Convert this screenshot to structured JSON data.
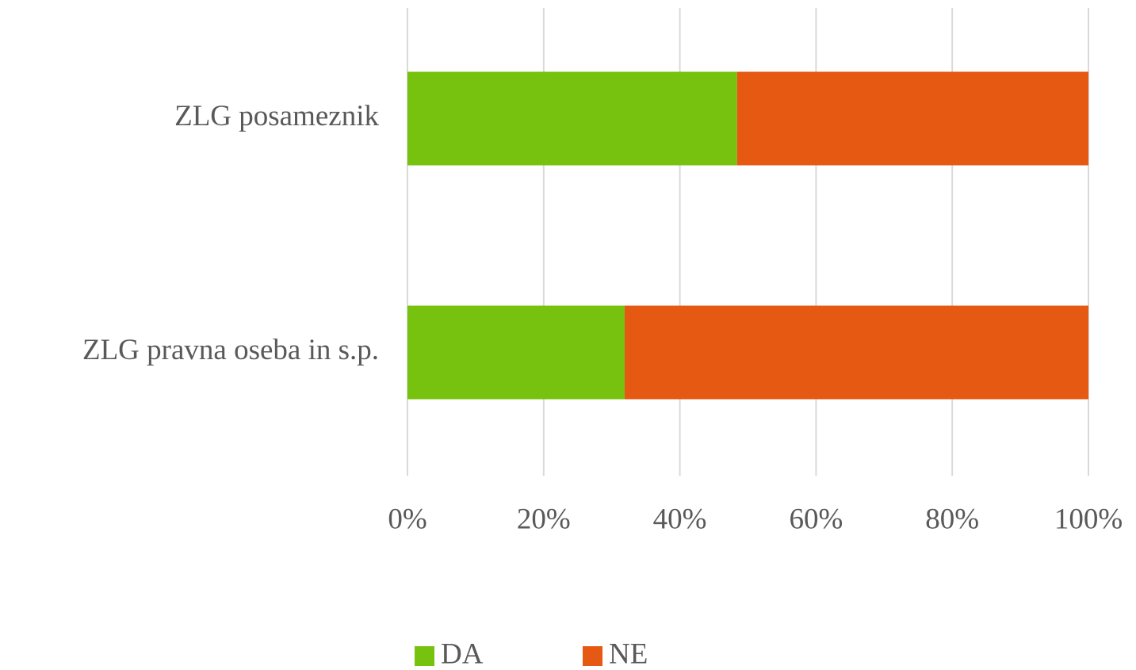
{
  "chart_data": {
    "type": "bar_stacked_horizontal",
    "categories": [
      "ZLG posameznik",
      "ZLG pravna oseba in s.p."
    ],
    "series": [
      {
        "name": "DA",
        "color": "#77c10f",
        "values": [
          48.4,
          31.9
        ]
      },
      {
        "name": "NE",
        "color": "#e55912",
        "values": [
          51.6,
          68.1
        ]
      }
    ],
    "xlim": [
      0,
      100
    ],
    "xticks": [
      {
        "value": 0,
        "label": "0%"
      },
      {
        "value": 20,
        "label": "20%"
      },
      {
        "value": 40,
        "label": "40%"
      },
      {
        "value": 60,
        "label": "60%"
      },
      {
        "value": 80,
        "label": "80%"
      },
      {
        "value": 100,
        "label": "100%"
      }
    ],
    "grid": true,
    "legend": "bottom"
  }
}
